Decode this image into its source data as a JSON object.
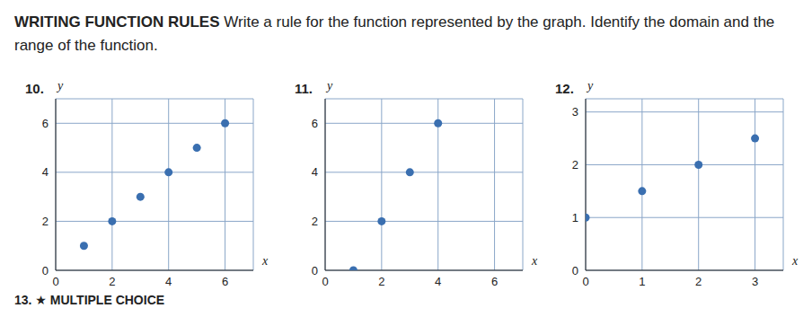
{
  "header": {
    "label": "WRITING FUNCTION RULES",
    "text": "Write a rule for the function represented by the graph. Identify the domain and the range of the function."
  },
  "chart_data": [
    {
      "type": "scatter",
      "title": "10.",
      "x_label": "x",
      "y_label": "y",
      "x": [
        1,
        2,
        3,
        4,
        5,
        6
      ],
      "values": [
        1,
        2,
        3,
        4,
        5,
        6
      ],
      "color": "#3a6fb0",
      "xlim": [
        0,
        7
      ],
      "ylim": [
        0,
        7
      ],
      "xticks": [
        0,
        2,
        4,
        6
      ],
      "yticks": [
        0,
        2,
        4,
        6
      ],
      "grid": true
    },
    {
      "type": "scatter",
      "title": "11.",
      "x_label": "x",
      "y_label": "y",
      "x": [
        1,
        2,
        3,
        4
      ],
      "values": [
        0,
        2,
        4,
        6
      ],
      "color": "#3a6fb0",
      "xlim": [
        0,
        7
      ],
      "ylim": [
        0,
        7
      ],
      "xticks": [
        0,
        2,
        4,
        6
      ],
      "yticks": [
        0,
        2,
        4,
        6
      ],
      "grid": true
    },
    {
      "type": "scatter",
      "title": "12.",
      "x_label": "x",
      "y_label": "y",
      "x": [
        0,
        1,
        2,
        3
      ],
      "values": [
        1,
        1.5,
        2,
        2.5
      ],
      "color": "#3a6fb0",
      "xlim": [
        0,
        3.5
      ],
      "ylim": [
        0,
        3.25
      ],
      "xticks": [
        0,
        1,
        2,
        3
      ],
      "yticks": [
        0,
        1,
        2,
        3
      ],
      "grid": true
    }
  ],
  "footer": "13. ★ MULTIPLE CHOICE"
}
